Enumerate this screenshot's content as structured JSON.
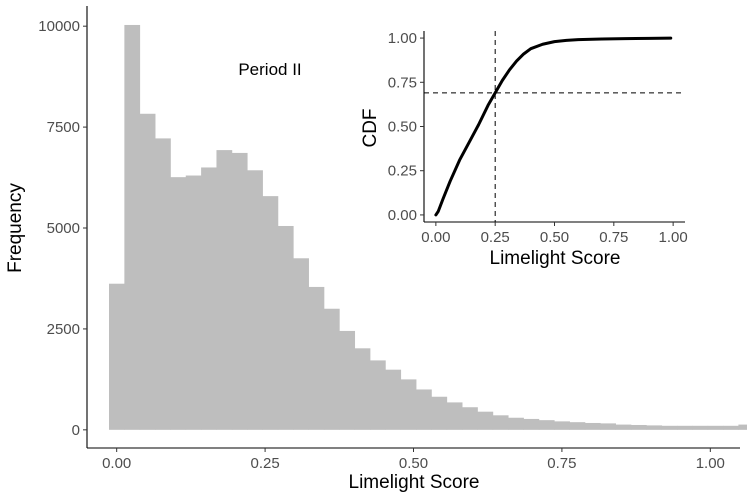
{
  "chart_data": [
    {
      "type": "bar",
      "subtype": "histogram",
      "annotation": "Period II",
      "xlabel": "Limelight Score",
      "ylabel": "Frequency",
      "xlim": [
        -0.05,
        1.05
      ],
      "ylim": [
        -450,
        10500
      ],
      "xticks": [
        0.0,
        0.25,
        0.5,
        0.75,
        1.0
      ],
      "xtick_labels": [
        "0.00",
        "0.25",
        "0.50",
        "0.75",
        "1.00"
      ],
      "yticks": [
        0,
        2500,
        5000,
        7500,
        10000
      ],
      "ytick_labels": [
        "0",
        "2500",
        "5000",
        "7500",
        "10000"
      ],
      "bin_width": 0.02586,
      "bin_start": -0.01293,
      "bar_color": "#bebebe",
      "grid": false,
      "values": [
        3620,
        10030,
        7830,
        7220,
        6260,
        6300,
        6500,
        6930,
        6860,
        6430,
        5790,
        5050,
        4250,
        3540,
        3000,
        2450,
        2020,
        1720,
        1490,
        1250,
        1000,
        820,
        680,
        560,
        450,
        360,
        300,
        270,
        240,
        210,
        190,
        170,
        160,
        130,
        120,
        110,
        100,
        100,
        100,
        100,
        100,
        130,
        450
      ]
    },
    {
      "type": "line",
      "subtype": "cdf",
      "xlabel": "Limelight Score",
      "ylabel": "CDF",
      "xlim": [
        -0.05,
        1.05
      ],
      "ylim": [
        -0.04,
        1.04
      ],
      "xticks": [
        0.0,
        0.25,
        0.5,
        0.75,
        1.0
      ],
      "xtick_labels": [
        "0.00",
        "0.25",
        "0.50",
        "0.75",
        "1.00"
      ],
      "yticks": [
        0.0,
        0.25,
        0.5,
        0.75,
        1.0
      ],
      "ytick_labels": [
        "0.00",
        "0.25",
        "0.50",
        "0.75",
        "1.00"
      ],
      "line_color": "#000000",
      "reference_lines": {
        "vertical_x": 0.25,
        "horizontal_y": 0.69,
        "style": "dashed"
      },
      "x": [
        0.0,
        0.01,
        0.03,
        0.06,
        0.1,
        0.14,
        0.18,
        0.22,
        0.25,
        0.28,
        0.31,
        0.34,
        0.37,
        0.4,
        0.45,
        0.5,
        0.55,
        0.6,
        0.7,
        0.8,
        0.9,
        0.99
      ],
      "y": [
        0.0,
        0.02,
        0.09,
        0.19,
        0.31,
        0.41,
        0.51,
        0.62,
        0.69,
        0.76,
        0.82,
        0.87,
        0.91,
        0.94,
        0.965,
        0.98,
        0.987,
        0.991,
        0.995,
        0.997,
        0.998,
        1.0
      ]
    }
  ]
}
